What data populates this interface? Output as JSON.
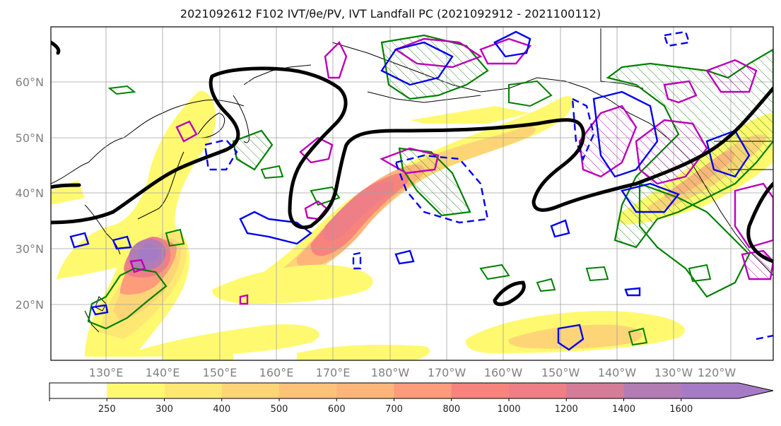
{
  "title": "2021092612 F102 IVT/θe/PV, IVT Landfall PC (2021092912 - 2021100112)",
  "map": {
    "lat_labels": [
      "60°N",
      "50°N",
      "40°N",
      "30°N",
      "20°N"
    ],
    "lon_labels": [
      "130°E",
      "140°E",
      "150°E",
      "160°E",
      "170°E",
      "180°W",
      "170°W",
      "160°W",
      "150°W",
      "140°W",
      "130°W",
      "120°W"
    ],
    "extent": {
      "lon_min": 120,
      "lon_max": 247,
      "lat_min": 10,
      "lat_max": 70
    }
  },
  "colorbar": {
    "ticks": [
      "250",
      "300",
      "400",
      "500",
      "600",
      "700",
      "800",
      "1000",
      "1200",
      "1400",
      "1600"
    ],
    "colors": [
      "#ffffff",
      "#fff970",
      "#fee873",
      "#fed576",
      "#fdc27a",
      "#fdb57a",
      "#fc9c7b",
      "#f7847c",
      "#ee7f86",
      "#d47c98",
      "#b37cb5",
      "#a67bc6"
    ],
    "extend": "max"
  },
  "legend_colors": {
    "theta_e_contour": "#000000",
    "pv_contour": "#0000ee",
    "pv_negative_contour": "#0000ee",
    "green_contour": "#008000",
    "magenta_contour": "#bb00bb"
  }
}
